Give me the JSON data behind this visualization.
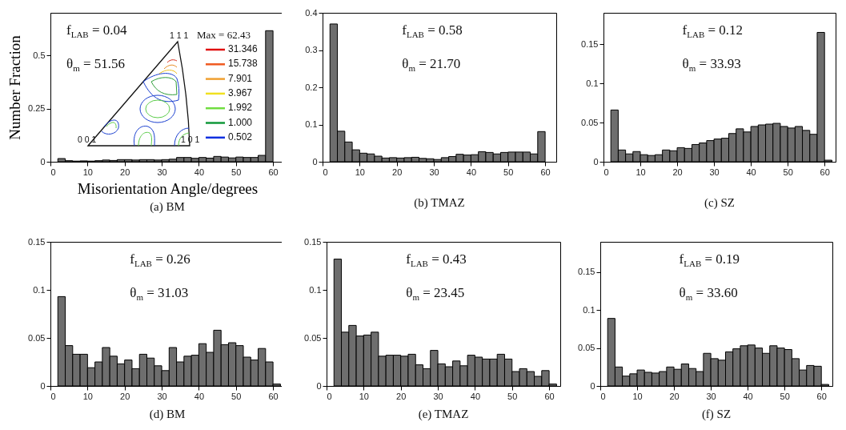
{
  "chart_data": [
    {
      "type": "histogram",
      "title": "(a) BM",
      "xlabel": "Misorientation Angle/degrees",
      "ylabel": "Number Fraction",
      "bins": [
        2,
        4,
        6,
        8,
        10,
        12,
        14,
        16,
        18,
        20,
        22,
        24,
        26,
        28,
        30,
        32,
        34,
        36,
        38,
        40,
        42,
        44,
        46,
        48,
        50,
        52,
        54,
        56,
        58,
        60
      ],
      "values": [
        0.015,
        0.005,
        0.003,
        0.004,
        0.003,
        0.005,
        0.008,
        0.006,
        0.01,
        0.01,
        0.008,
        0.01,
        0.01,
        0.008,
        0.01,
        0.012,
        0.02,
        0.02,
        0.016,
        0.02,
        0.017,
        0.025,
        0.022,
        0.018,
        0.022,
        0.02,
        0.02,
        0.03,
        0.616
      ],
      "color": "#6e6e6e",
      "xlim": [
        0,
        63
      ],
      "xticks": [
        0,
        10,
        20,
        30,
        40,
        50,
        60
      ],
      "ylim": [
        0,
        0.7
      ],
      "yticks": [
        0,
        0.25,
        0.5
      ],
      "annotations": [
        "f$_{LAB}$ = 0.04",
        "θ$_{m}$ = 51.56",
        "1 1 1",
        "0 0 1",
        "1 0 1",
        "Max = 62.43",
        "31.346",
        "15.738",
        "7.901",
        "3.967",
        "1.992",
        "1.000",
        "0.502"
      ]
    },
    {
      "type": "histogram",
      "title": "(b) TMAZ",
      "bins": [
        2,
        4,
        6,
        8,
        10,
        12,
        14,
        16,
        18,
        20,
        22,
        24,
        26,
        28,
        30,
        32,
        34,
        36,
        38,
        40,
        42,
        44,
        46,
        48,
        50,
        52,
        54,
        56,
        58,
        60
      ],
      "values": [
        0.37,
        0.082,
        0.053,
        0.032,
        0.023,
        0.021,
        0.015,
        0.01,
        0.011,
        0.01,
        0.011,
        0.012,
        0.009,
        0.008,
        0.006,
        0.011,
        0.014,
        0.02,
        0.018,
        0.019,
        0.027,
        0.025,
        0.021,
        0.025,
        0.026,
        0.026,
        0.026,
        0.021,
        0.081
      ],
      "color": "#6e6e6e",
      "xlim": [
        0,
        63
      ],
      "xticks": [
        0,
        10,
        20,
        30,
        40,
        50,
        60
      ],
      "ylim": [
        0,
        0.4
      ],
      "yticks": [
        0,
        0.1,
        0.2,
        0.3,
        0.4
      ],
      "annotations": [
        "f$_{LAB}$ = 0.58",
        "θ$_{m}$ = 21.70"
      ]
    },
    {
      "type": "histogram",
      "title": "(c) SZ",
      "bins": [
        2,
        4,
        6,
        8,
        10,
        12,
        14,
        16,
        18,
        20,
        22,
        24,
        26,
        28,
        30,
        32,
        34,
        36,
        38,
        40,
        42,
        44,
        46,
        48,
        50,
        52,
        54,
        56,
        58,
        60,
        62
      ],
      "values": [
        0.066,
        0.015,
        0.01,
        0.013,
        0.009,
        0.008,
        0.009,
        0.015,
        0.014,
        0.018,
        0.017,
        0.022,
        0.024,
        0.027,
        0.029,
        0.03,
        0.036,
        0.042,
        0.038,
        0.045,
        0.047,
        0.048,
        0.049,
        0.045,
        0.043,
        0.045,
        0.04,
        0.035,
        0.165,
        0.002
      ],
      "color": "#6e6e6e",
      "xlim": [
        0,
        63
      ],
      "xticks": [
        0,
        10,
        20,
        30,
        40,
        50,
        60
      ],
      "ylim": [
        0,
        0.19
      ],
      "yticks": [
        0,
        0.05,
        0.1,
        0.15
      ],
      "annotations": [
        "f$_{LAB}$ = 0.12",
        "θ$_{m}$ = 33.93"
      ]
    },
    {
      "type": "histogram",
      "title": "(d) BM",
      "bins": [
        2,
        4,
        6,
        8,
        10,
        12,
        14,
        16,
        18,
        20,
        22,
        24,
        26,
        28,
        30,
        32,
        34,
        36,
        38,
        40,
        42,
        44,
        46,
        48,
        50,
        52,
        54,
        56,
        58,
        60,
        62
      ],
      "values": [
        0.093,
        0.042,
        0.033,
        0.033,
        0.019,
        0.025,
        0.04,
        0.031,
        0.023,
        0.027,
        0.018,
        0.033,
        0.029,
        0.021,
        0.016,
        0.04,
        0.025,
        0.031,
        0.032,
        0.044,
        0.035,
        0.058,
        0.043,
        0.045,
        0.042,
        0.03,
        0.027,
        0.039,
        0.025,
        0.002
      ],
      "color": "#6e6e6e",
      "xlim": [
        0,
        63
      ],
      "xticks": [
        0,
        10,
        20,
        30,
        40,
        50,
        60
      ],
      "ylim": [
        0,
        0.15
      ],
      "yticks": [
        0,
        0.05,
        0.1,
        0.15
      ],
      "annotations": [
        "f$_{LAB}$ = 0.26",
        "θ$_{m}$ = 31.03"
      ]
    },
    {
      "type": "histogram",
      "title": "(e) TMAZ",
      "bins": [
        2,
        4,
        6,
        8,
        10,
        12,
        14,
        16,
        18,
        20,
        22,
        24,
        26,
        28,
        30,
        32,
        34,
        36,
        38,
        40,
        42,
        44,
        46,
        48,
        50,
        52,
        54,
        56,
        58,
        60,
        62
      ],
      "values": [
        0.132,
        0.056,
        0.063,
        0.052,
        0.053,
        0.056,
        0.031,
        0.032,
        0.032,
        0.031,
        0.033,
        0.022,
        0.018,
        0.037,
        0.023,
        0.02,
        0.026,
        0.021,
        0.032,
        0.03,
        0.028,
        0.028,
        0.033,
        0.028,
        0.015,
        0.018,
        0.015,
        0.01,
        0.016,
        0.002
      ],
      "color": "#6e6e6e",
      "xlim": [
        0,
        63
      ],
      "xticks": [
        0,
        10,
        20,
        30,
        40,
        50,
        60
      ],
      "ylim": [
        0,
        0.15
      ],
      "yticks": [
        0,
        0.05,
        0.1,
        0.15
      ],
      "annotations": [
        "f$_{LAB}$ = 0.43",
        "θ$_{m}$ = 23.45"
      ]
    },
    {
      "type": "histogram",
      "title": "(f) SZ",
      "bins": [
        2,
        4,
        6,
        8,
        10,
        12,
        14,
        16,
        18,
        20,
        22,
        24,
        26,
        28,
        30,
        32,
        34,
        36,
        38,
        40,
        42,
        44,
        46,
        48,
        50,
        52,
        54,
        56,
        58,
        60,
        62
      ],
      "values": [
        0.089,
        0.025,
        0.013,
        0.016,
        0.021,
        0.018,
        0.017,
        0.019,
        0.025,
        0.022,
        0.029,
        0.023,
        0.019,
        0.043,
        0.036,
        0.034,
        0.045,
        0.049,
        0.053,
        0.054,
        0.05,
        0.043,
        0.053,
        0.05,
        0.048,
        0.036,
        0.021,
        0.027,
        0.026,
        0.002
      ],
      "color": "#6e6e6e",
      "xlim": [
        0,
        63
      ],
      "xticks": [
        0,
        10,
        20,
        30,
        40,
        50,
        60
      ],
      "ylim": [
        0,
        0.19
      ],
      "yticks": [
        0,
        0.05,
        0.1,
        0.15
      ],
      "annotations": [
        "f$_{LAB}$ = 0.19",
        "θ$_{m}$ = 33.60"
      ]
    }
  ]
}
